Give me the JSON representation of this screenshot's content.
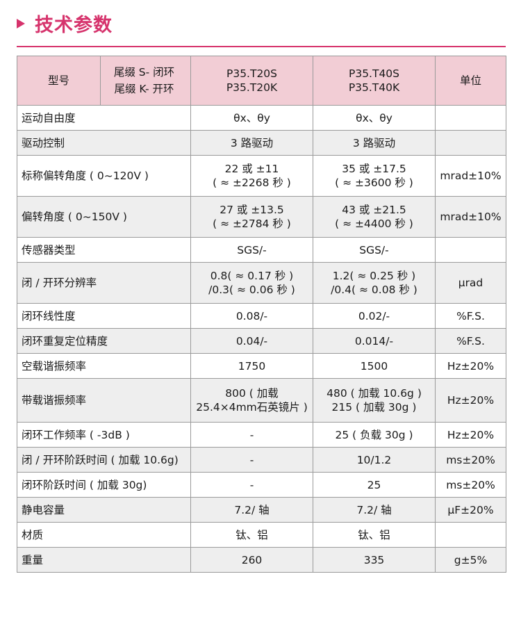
{
  "section": {
    "title": "技术参数"
  },
  "table": {
    "header": {
      "model_label": "型号",
      "tail_s": "尾缀 S- 闭环",
      "tail_k": "尾缀 K- 开环",
      "col1": [
        "P35.T20S",
        "P35.T20K"
      ],
      "col2": [
        "P35.T40S",
        "P35.T40K"
      ],
      "unit_label": "单位"
    },
    "rows": [
      {
        "param": "运动自由度",
        "v1": [
          "θx、θy"
        ],
        "v2": [
          "θx、θy"
        ],
        "unit": ""
      },
      {
        "param": "驱动控制",
        "v1": [
          "3 路驱动"
        ],
        "v2": [
          "3 路驱动"
        ],
        "unit": ""
      },
      {
        "param": "标称偏转角度 ( 0~120V )",
        "v1": [
          "22 或 ±11",
          "( ≈ ±2268 秒 )"
        ],
        "v2": [
          "35 或 ±17.5",
          "( ≈ ±3600 秒 )"
        ],
        "unit": "mrad±10%"
      },
      {
        "param": "偏转角度 ( 0~150V )",
        "v1": [
          "27 或 ±13.5",
          "( ≈ ±2784 秒 )"
        ],
        "v2": [
          "43 或 ±21.5",
          "( ≈ ±4400 秒 )"
        ],
        "unit": "mrad±10%"
      },
      {
        "param": "传感器类型",
        "v1": [
          "SGS/-"
        ],
        "v2": [
          "SGS/-"
        ],
        "unit": ""
      },
      {
        "param": "闭 / 开环分辨率",
        "v1": [
          "0.8( ≈ 0.17 秒 )",
          "/0.3( ≈ 0.06 秒 )"
        ],
        "v2": [
          "1.2( ≈ 0.25 秒 )",
          "/0.4( ≈ 0.08 秒 )"
        ],
        "unit": "μrad"
      },
      {
        "param": "闭环线性度",
        "v1": [
          "0.08/-"
        ],
        "v2": [
          "0.02/-"
        ],
        "unit": "%F.S."
      },
      {
        "param": "闭环重复定位精度",
        "v1": [
          "0.04/-"
        ],
        "v2": [
          "0.014/-"
        ],
        "unit": "%F.S."
      },
      {
        "param": "空载谐振频率",
        "v1": [
          "1750"
        ],
        "v2": [
          "1500"
        ],
        "unit": "Hz±20%"
      },
      {
        "param": "带载谐振频率",
        "v1": [
          "800 ( 加载",
          "25.4×4mm石英镜片 )"
        ],
        "v2": [
          "480 ( 加载 10.6g )",
          "215 ( 加载 30g )"
        ],
        "unit": "Hz±20%"
      },
      {
        "param": "闭环工作频率 ( -3dB )",
        "v1": [
          "-"
        ],
        "v2": [
          "25 ( 负载 30g )"
        ],
        "unit": "Hz±20%"
      },
      {
        "param": "闭 / 开环阶跃时间 ( 加载 10.6g)",
        "v1": [
          "-"
        ],
        "v2": [
          "10/1.2"
        ],
        "unit": "ms±20%"
      },
      {
        "param": "闭环阶跃时间 ( 加载 30g)",
        "v1": [
          "-"
        ],
        "v2": [
          "25"
        ],
        "unit": "ms±20%"
      },
      {
        "param": "静电容量",
        "v1": [
          "7.2/ 轴"
        ],
        "v2": [
          "7.2/ 轴"
        ],
        "unit": "μF±20%"
      },
      {
        "param": "材质",
        "v1": [
          "钛、铝"
        ],
        "v2": [
          "钛、铝"
        ],
        "unit": ""
      },
      {
        "param": "重量",
        "v1": [
          "260"
        ],
        "v2": [
          "335"
        ],
        "unit": "g±5%"
      }
    ]
  },
  "colors": {
    "accent": "#d6336c",
    "header_bg": "#f2cdd5",
    "zebra_bg": "#eeeeee",
    "border": "#9a9a9a"
  }
}
